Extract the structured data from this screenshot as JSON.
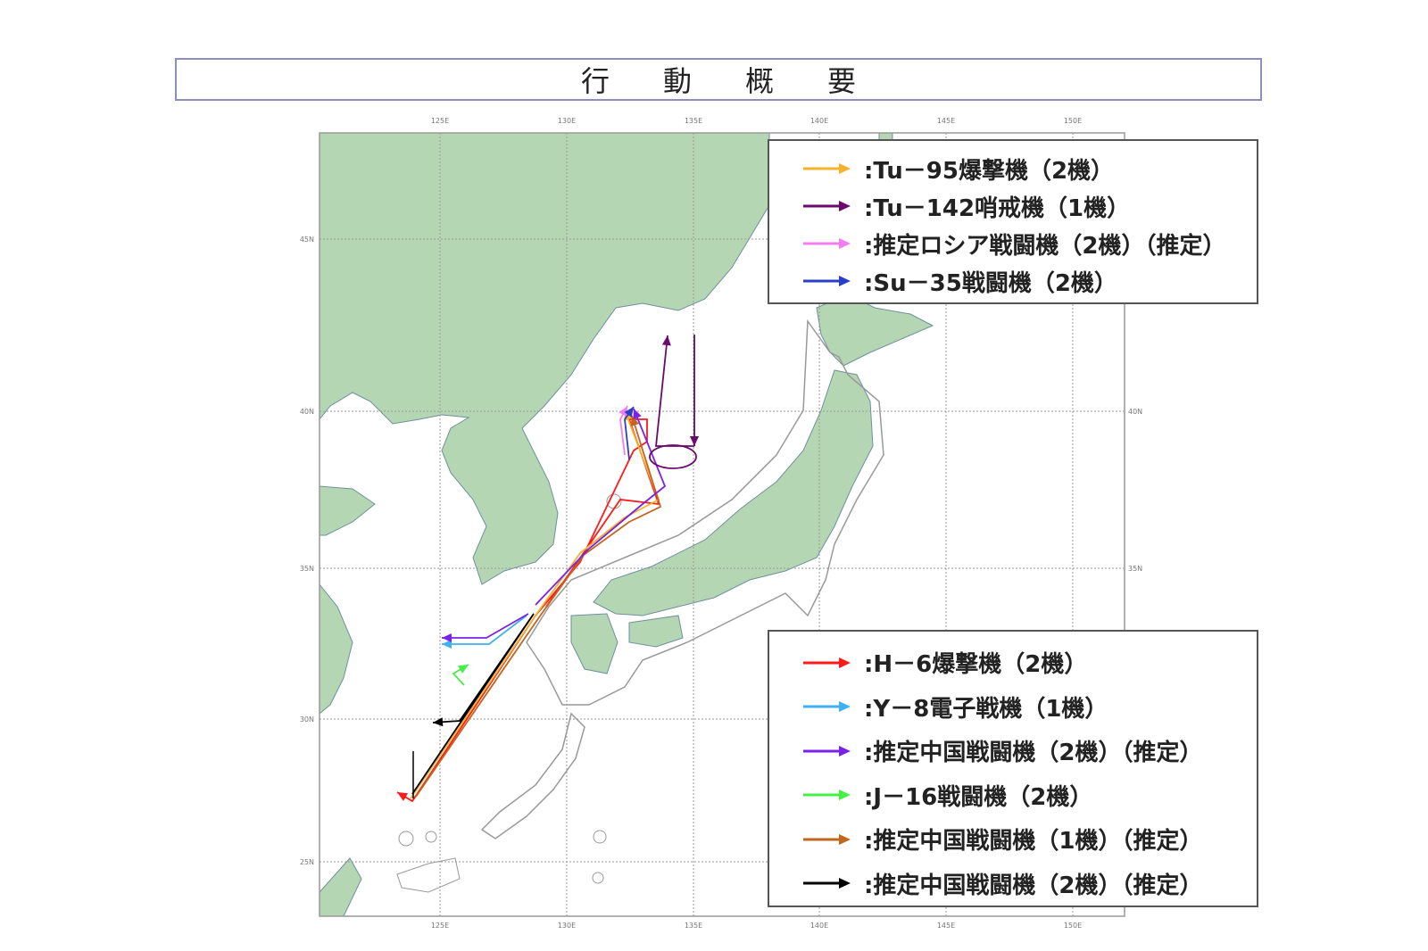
{
  "title": "行動概要",
  "map": {
    "longitude_ticks": [
      "125E",
      "130E",
      "135E",
      "140E",
      "145E",
      "150E"
    ],
    "latitude_ticks": [
      "45N",
      "40N",
      "35N",
      "30N",
      "25N"
    ],
    "colors": {
      "land": "#b5d6b2",
      "sea": "#ffffff",
      "grid": "#888888",
      "airspace_outline": "#999999"
    }
  },
  "legend_russia": [
    {
      "label": ":Tu－95爆撃機（2機）",
      "color": "#f5b22a"
    },
    {
      "label": ":Tu－142哨戒機（1機）",
      "color": "#6a0a6e"
    },
    {
      "label": ":推定ロシア戦闘機（2機）（推定）",
      "color": "#f57cf0"
    },
    {
      "label": ":Su－35戦闘機（2機）",
      "color": "#2a3fc8"
    }
  ],
  "legend_china": [
    {
      "label": ":H－6爆撃機（2機）",
      "color": "#ff1a1a"
    },
    {
      "label": ":Y－8電子戦機（1機）",
      "color": "#3fb0f0"
    },
    {
      "label": ":推定中国戦闘機（2機）（推定）",
      "color": "#7a22e6"
    },
    {
      "label": ":J－16戦闘機（2機）",
      "color": "#44f044"
    },
    {
      "label": ":推定中国戦闘機（1機）（推定）",
      "color": "#c0661e"
    },
    {
      "label": ":推定中国戦闘機（2機）（推定）",
      "color": "#000000"
    }
  ]
}
